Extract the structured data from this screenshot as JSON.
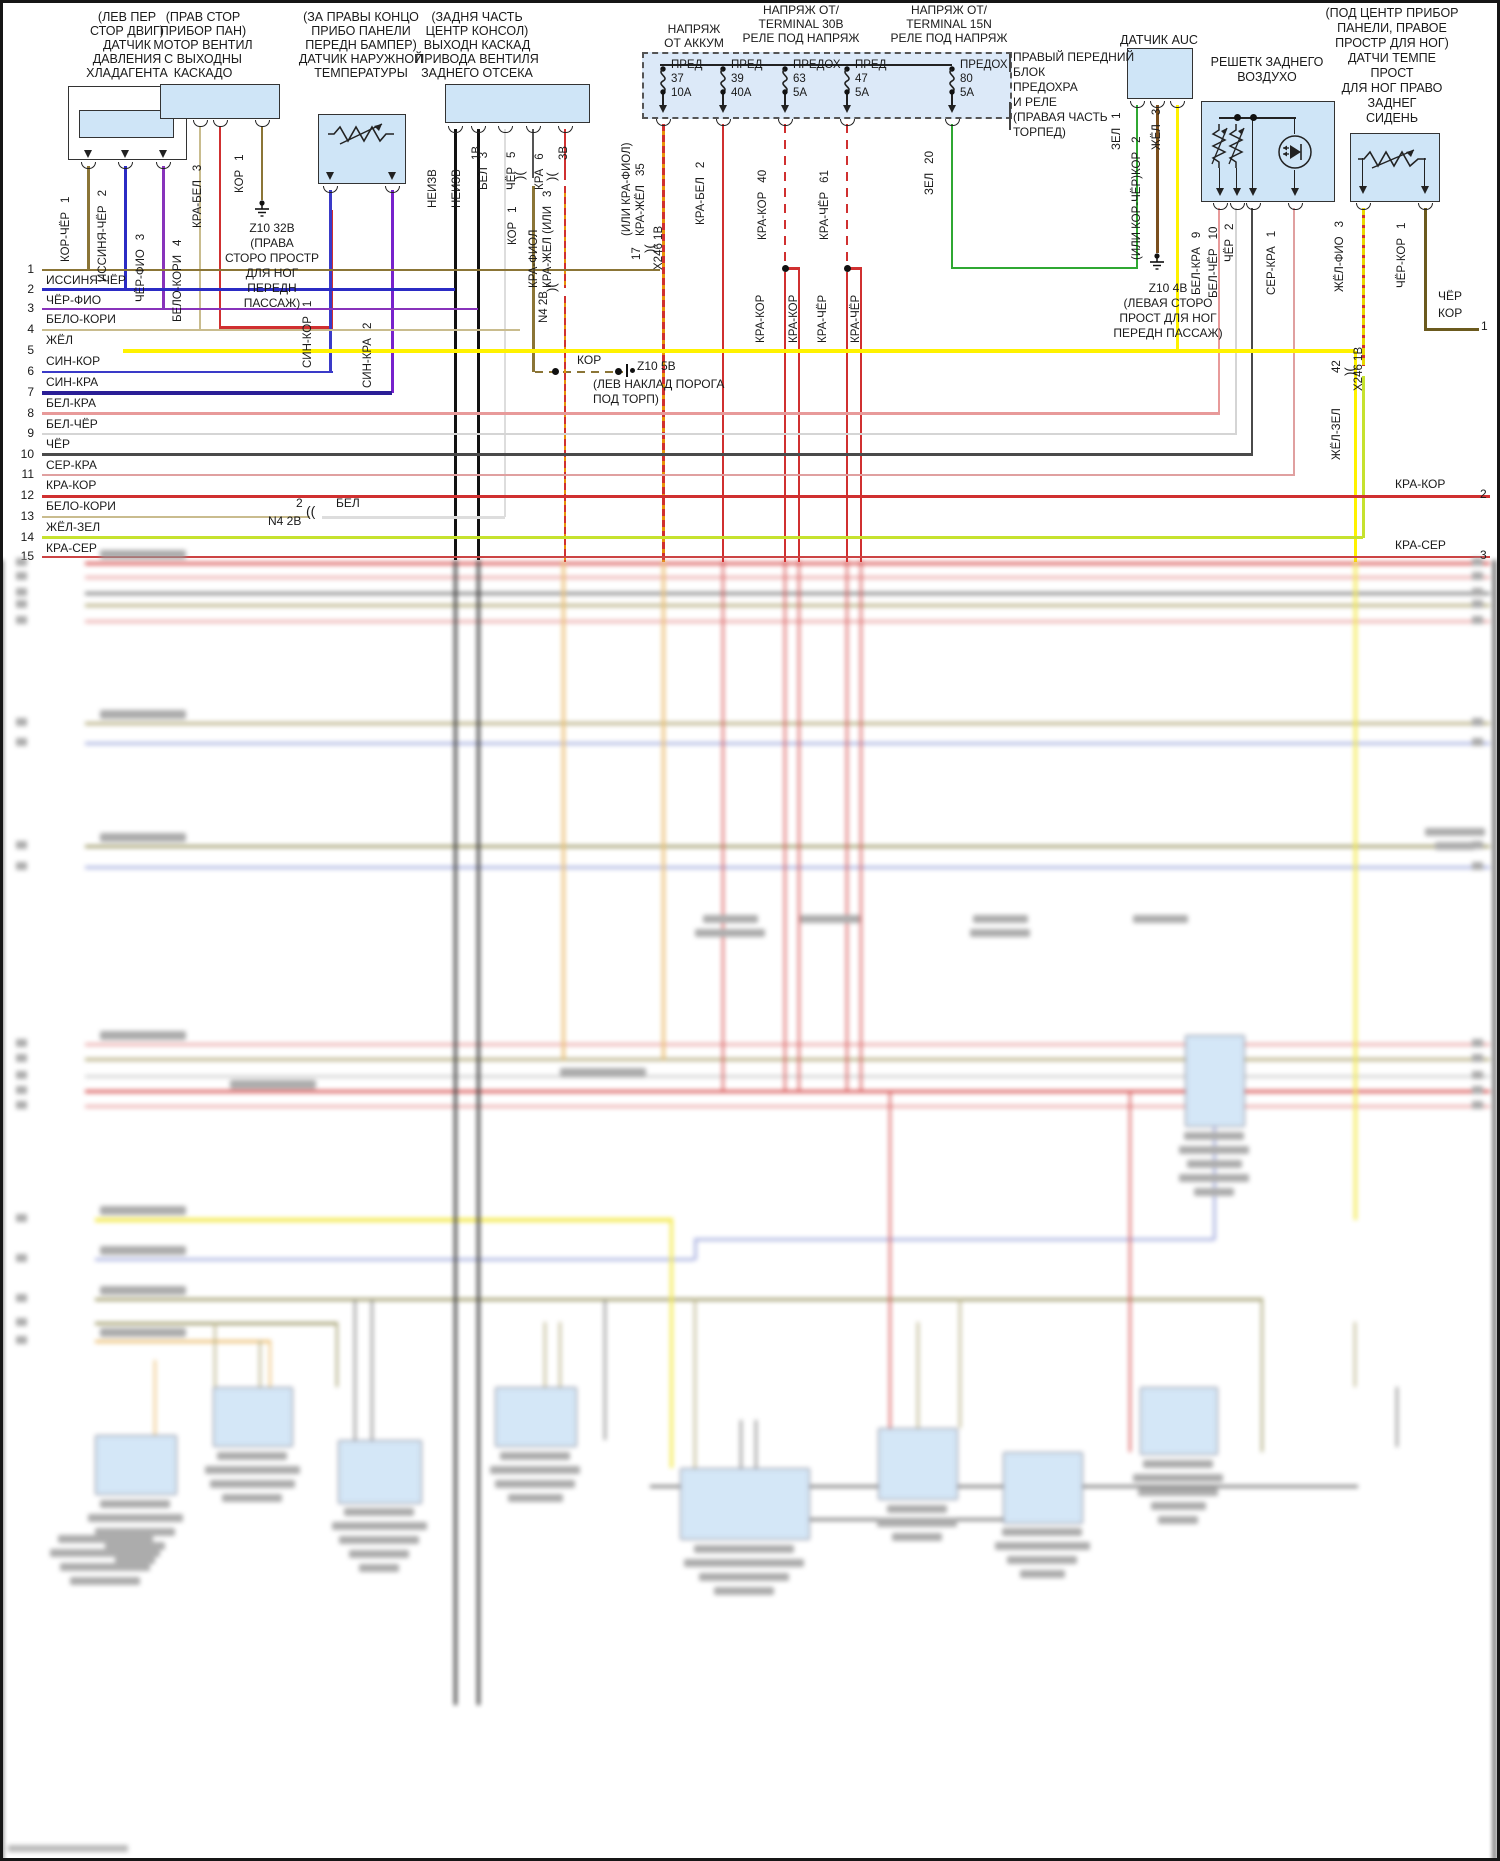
{
  "palette": {
    "component_fill": "#CFE5F7",
    "fuse_box_fill": "#DCE9F8",
    "wire_red": "#D03030",
    "wire_yellow": "#FFF200",
    "wire_green": "#2FA832"
  },
  "titles": {
    "c1": [
      "(ЛЕВ ПЕР",
      "СТОР ДВИГ)",
      "ДАТЧИК",
      "ДАВЛЕНИЯ",
      "ХЛАДАГЕНТА"
    ],
    "c2": [
      "(ПРАВ СТОР",
      "ПРИБОР ПАН)",
      "МОТОР ВЕНТИЛ",
      "С ВЫХОДНЫ",
      "КАСКАДО"
    ],
    "c3": [
      "(ЗА ПРАВЫ КОНЦО",
      "ПРИБО ПАНЕЛИ",
      "ПЕРЕДН БАМПЕР)",
      "ДАТЧИК НАРУЖНОЙ",
      "ТЕМПЕРАТУРЫ"
    ],
    "c4": [
      "(ЗАДНЯ ЧАСТЬ",
      "ЦЕНТР КОНСОЛ)",
      "ВЫХОДН КАСКАД",
      "ПРИВОДА ВЕНТИЛЯ",
      "ЗАДНЕГО ОТСЕКА"
    ],
    "auc": "ДАТЧИК AUC",
    "grille": [
      "РЕШЕТК ЗАДНЕГО",
      "ВОЗДУХО"
    ],
    "c7": [
      "(ПОД ЦЕНТР ПРИБОР",
      "ПАНЕЛИ, ПРАВОЕ",
      "ПРОСТР ДЛЯ НОГ)",
      "ДАТЧИ ТЕМПЕ",
      "ПРОСТ",
      "ДЛЯ НОГ ПРАВО",
      "ЗАДНЕГ",
      "СИДЕНЬ"
    ],
    "fusenote": [
      "ПРАВЫЙ ПЕРЕДНИЙ",
      "БЛОК",
      "ПРЕДОХРА",
      "И РЕЛЕ",
      "(ПРАВАЯ ЧАСТЬ",
      "ТОРПЕД)"
    ]
  },
  "fusebox": {
    "h1": [
      "НАПРЯЖ",
      "ОТ АККУМ"
    ],
    "h2": [
      "НАПРЯЖ ОТ/",
      "TERMINAL 30В",
      "РЕЛЕ ПОД НАПРЯЖ"
    ],
    "h3": [
      "НАПРЯЖ ОТ/",
      "TERMINAL 15N",
      "РЕЛЕ ПОД НАПРЯЖ"
    ],
    "fuses": [
      {
        "name": "ПРЕД",
        "num": "37",
        "amp": "10А"
      },
      {
        "name": "ПРЕД",
        "num": "39",
        "amp": "40А"
      },
      {
        "name": "ПРЕДОХ",
        "num": "63",
        "amp": "5А"
      },
      {
        "name": "ПРЕД",
        "num": "47",
        "amp": "5А"
      },
      {
        "name": "ПРЕДОХ",
        "num": "80",
        "amp": "5А"
      }
    ]
  },
  "pins": {
    "c1": [
      {
        "l": "КОР-ЧЁР",
        "n": "1"
      },
      {
        "l": "ИССИНЯ-ЧЁР",
        "n": "2"
      },
      {
        "l": "ЧЁР-ФИО",
        "n": "3"
      }
    ],
    "c2": [
      {
        "l": "БЕЛО-КОРИ",
        "n": "4"
      },
      {
        "l": "КРА-БЕЛ",
        "n": "3"
      },
      {
        "l": "КОР",
        "n": "1"
      }
    ],
    "c3": [
      {
        "l": "СИН-КОР",
        "n": "1"
      },
      {
        "l": "СИН-КРА",
        "n": "2"
      }
    ],
    "c4": {
      "unk1": "НЕИЗВ",
      "unk2": "НЕИЗВ",
      "v1": "1В",
      "bel": {
        "l": "БЕЛ",
        "n": "3"
      },
      "cher": {
        "l": "ЧЁР",
        "n": "5"
      },
      "kra": {
        "l": "КРА",
        "n": "6"
      },
      "v3": "3В",
      "kor": {
        "l": "КОР",
        "n": "1"
      },
      "krafiol": "КРА-ФИОЛ",
      "krazhel": "КРА-ЖЕЛ (ИЛИ",
      "n3": "3",
      "n4": "N4 2В"
    },
    "fuseout": [
      {
        "pre": "(ИЛИ КРА-ФИОЛ)",
        "l": "КРА-ЖЁЛ",
        "n": "35"
      },
      {
        "l": "КРА-БЕЛ",
        "n": "2"
      },
      {
        "l": "КРА-КОР",
        "n": "40"
      },
      {
        "l": "КРА-ЧЁР",
        "n": "61"
      },
      {
        "l": "ЗЕЛ",
        "n": "20"
      }
    ],
    "branches": [
      "КРА-КОР",
      "КРА-КОР",
      "КРА-ЧЁР",
      "КРА-ЧЁР"
    ],
    "auc": [
      {
        "l": "ЗЕЛ",
        "n": "1"
      },
      {
        "l": "(ИЛИ КОР-ЧЁР)КОР",
        "n": "2"
      },
      {
        "l": "ЖЁЛ",
        "n": "3"
      }
    ],
    "grille": [
      {
        "l": "БЕЛ-КРА",
        "n": "9"
      },
      {
        "l": "БЕЛ-ЧЁР",
        "n": "10"
      },
      {
        "l": "ЧЁР",
        "n": "2"
      },
      {
        "l": "СЕР-КРА",
        "n": "1"
      }
    ],
    "c7": [
      {
        "l": "ЖЁЛ-ФИО",
        "n": "3"
      },
      {
        "l": "ЧЁР-КОР",
        "n": "1"
      }
    ],
    "zhelzel": "ЖЁЛ-ЗЕЛ"
  },
  "conn": {
    "x17": {
      "n": "17",
      "name": "X246 1В"
    },
    "x42": {
      "n": "42",
      "name": "X246 1В"
    },
    "row13": {
      "n": "2",
      "bel": "БЕЛ",
      "conn": "N4 2В"
    },
    "kor_dash": "КОР"
  },
  "gnd": {
    "z32": [
      "Z10 32В",
      "(ПРАВА",
      "СТОРО ПРОСТР",
      "ДЛЯ НОГ",
      "ПЕРЕДН",
      "ПАССАЖ)"
    ],
    "z5": [
      "Z10 5В",
      "(ЛЕВ НАКЛАД ПОРОГА",
      "ПОД ТОРП)"
    ],
    "z4": [
      "Z10 4В",
      "(ЛЕВАЯ СТОРО",
      "ПРОСТ ДЛЯ НОГ",
      "ПЕРЕДН ПАССАЖ)"
    ]
  },
  "edge": {
    "cher": "ЧЁР",
    "kor": "КОР",
    "n1": "1",
    "krakor": "КРА-КОР",
    "n2": "2",
    "kraser": "КРА-СЕР",
    "n3": "3"
  },
  "rows": [
    {
      "n": "1",
      "label": "ИССИНЯ-ЧЁР"
    },
    {
      "n": "2",
      "label": "ЧЁР-ФИО"
    },
    {
      "n": "3",
      "label": "БЕЛО-КОРИ"
    },
    {
      "n": "4",
      "label": "ЖЁЛ"
    },
    {
      "n": "5",
      "label": "СИН-КОР"
    },
    {
      "n": "6",
      "label": "СИН-КРА"
    },
    {
      "n": "7",
      "label": "БЕЛ-КРА"
    },
    {
      "n": "8",
      "label": "БЕЛ-ЧЁР"
    },
    {
      "n": "9",
      "label": "ЧЁР"
    },
    {
      "n": "10",
      "label": "СЕР-КРА"
    },
    {
      "n": "11",
      "label": "КРА-КОР"
    },
    {
      "n": "12",
      "label": "БЕЛО-КОРИ"
    },
    {
      "n": "13",
      "label": "ЖЁЛ-ЗЕЛ"
    },
    {
      "n": "14",
      "label": "КРА-СЕР"
    },
    {
      "n": "15",
      "label": ""
    }
  ]
}
